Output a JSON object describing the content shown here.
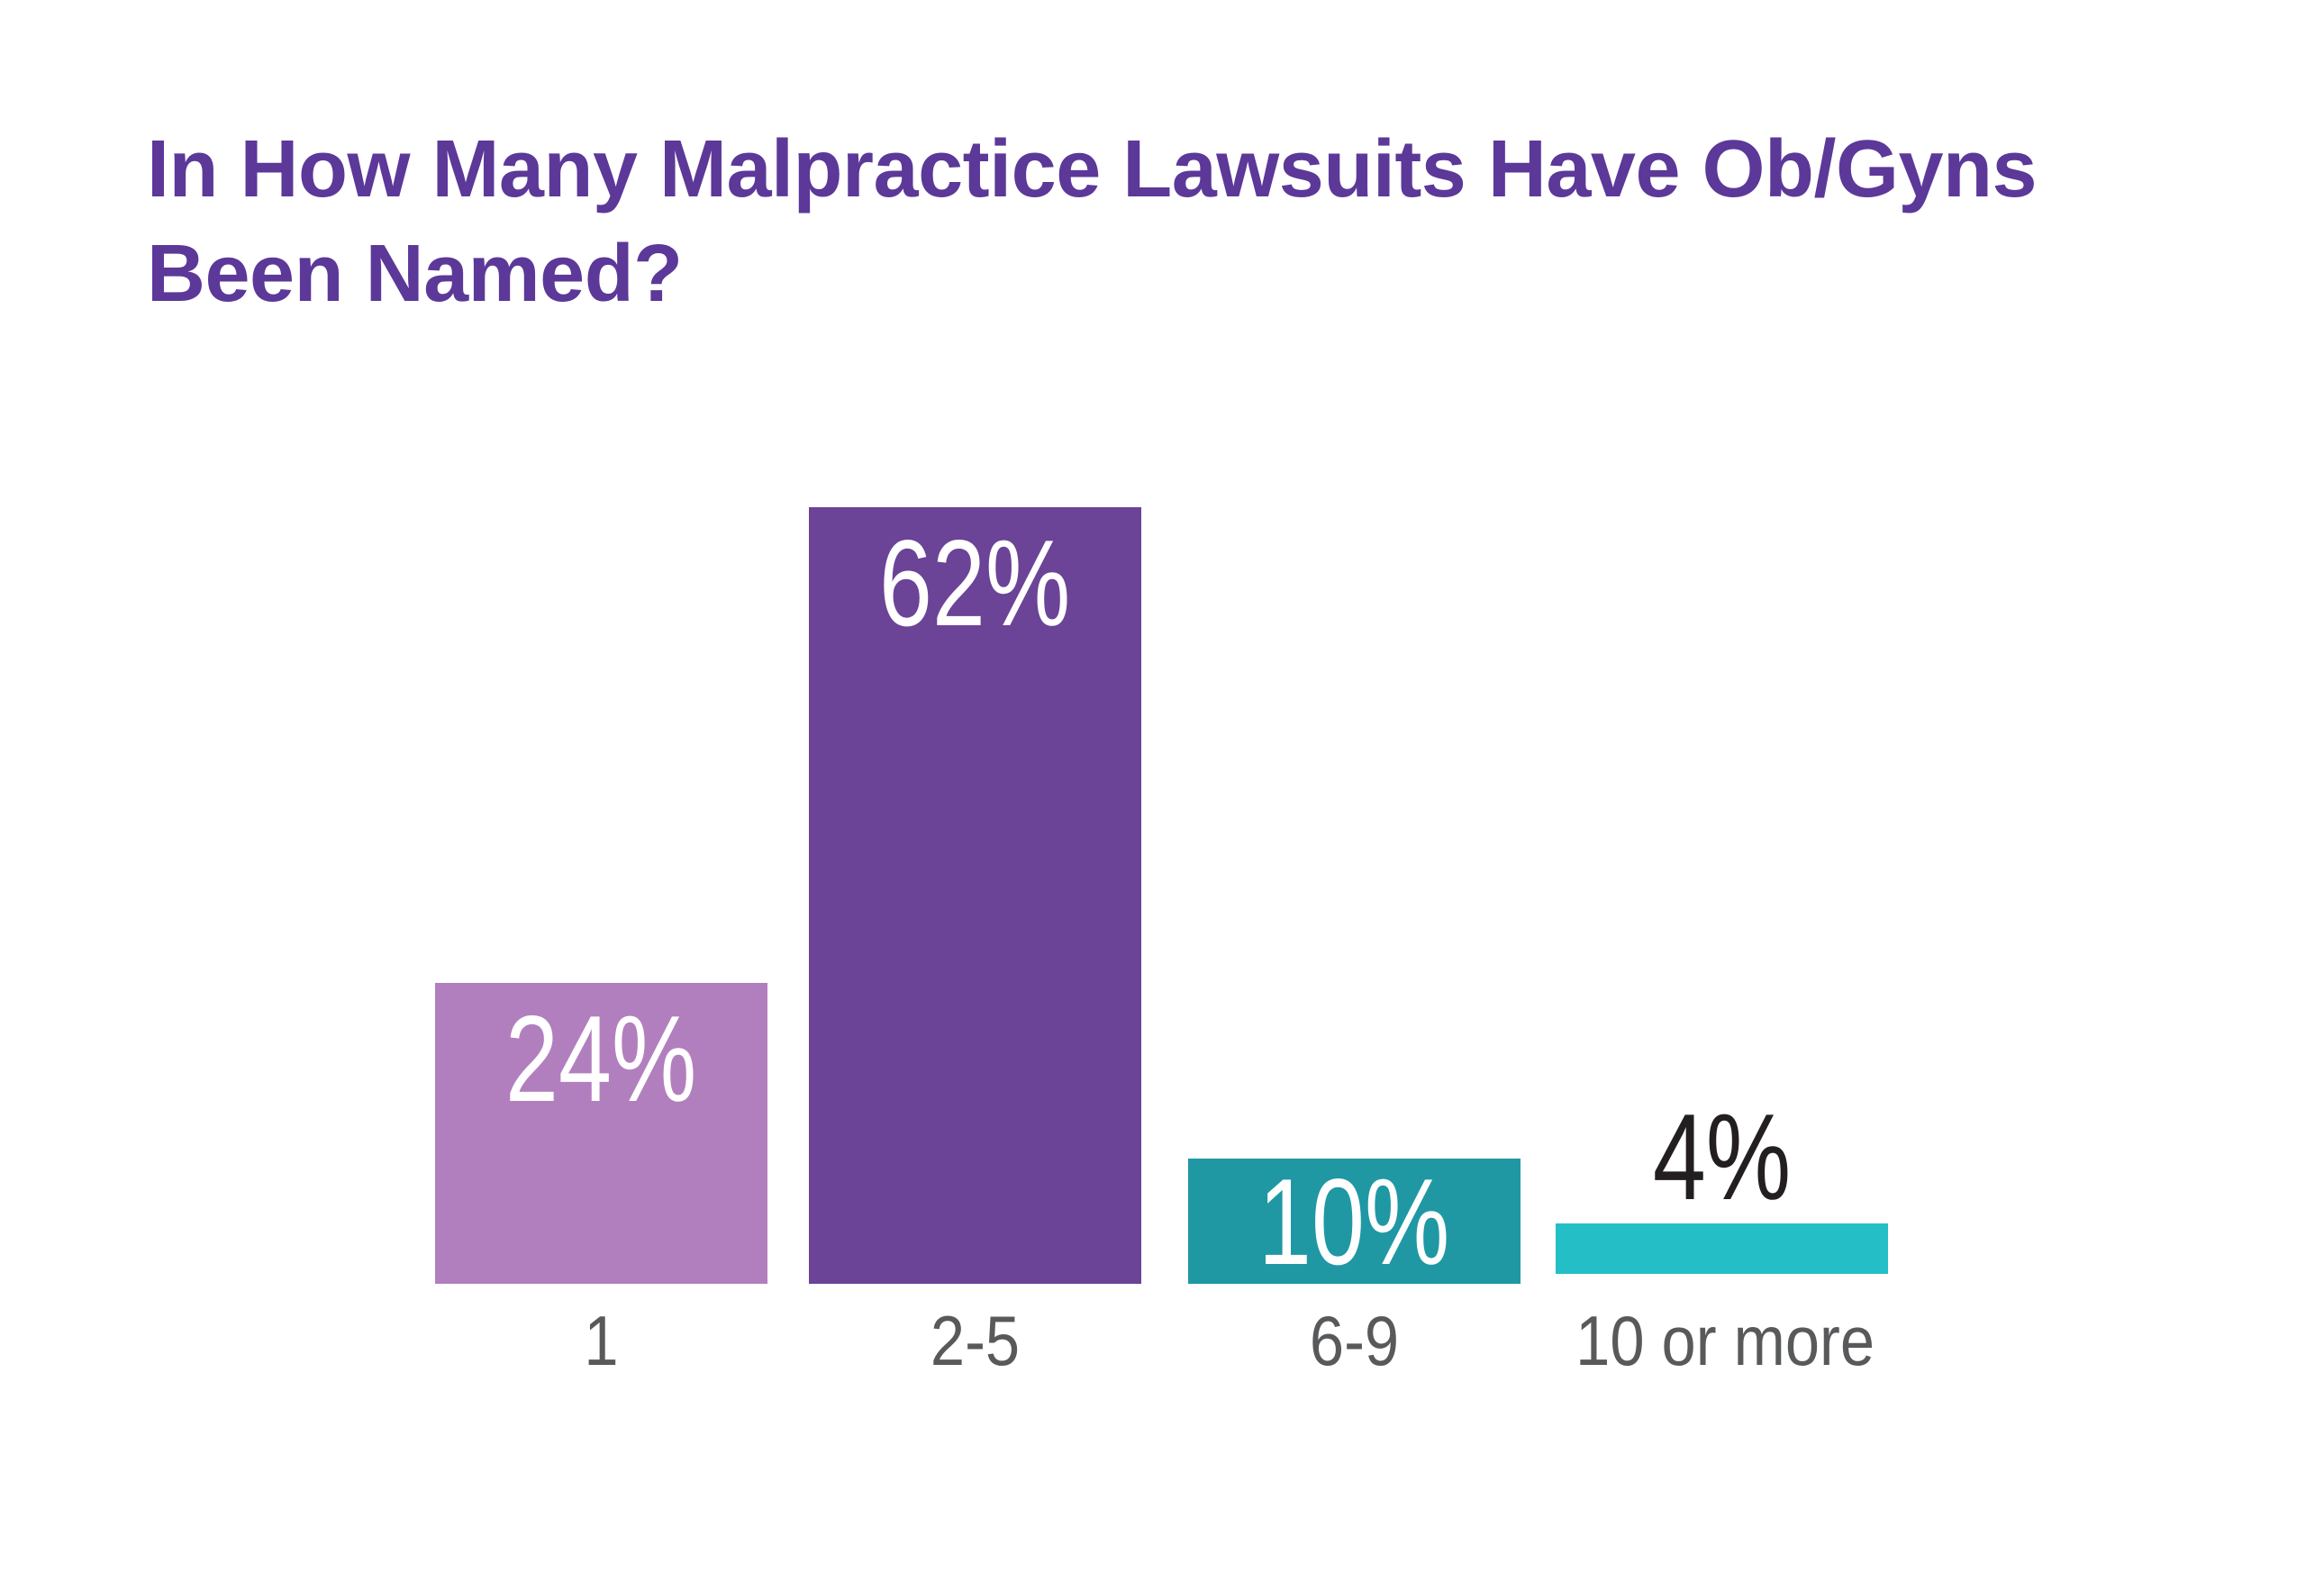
{
  "header": {
    "title_lines": [
      "In How Many Malpractice Lawsuits Have Ob/Gyns",
      "Been Named?"
    ]
  },
  "chart_data": {
    "type": "bar",
    "title": "In How Many Malpractice Lawsuits Have Ob/Gyns Been Named?",
    "categories": [
      "1",
      "2-5",
      "6-9",
      "10 or more"
    ],
    "values": [
      24,
      62,
      10,
      4
    ],
    "display_values": [
      "24%",
      "62%",
      "10%",
      "4%"
    ],
    "unit": "percent of Ob/Gyns",
    "xlabel": "",
    "ylabel": "",
    "ylim": [
      0,
      62
    ],
    "grid": false,
    "legend": false,
    "axes_hidden": true,
    "bar_colors": [
      "#B27FBE",
      "#6B4397",
      "#1F98A4",
      "#24BFC6"
    ],
    "value_label_colors": [
      "#FFFFFF",
      "#FFFFFF",
      "#FFFFFF",
      "#231F20"
    ],
    "value_label_positions": [
      "inside-top",
      "inside-top",
      "inside-center",
      "above"
    ],
    "title_color": "#5C3899",
    "axis_label_color": "#58595B",
    "background_color": "#FFFFFF"
  }
}
